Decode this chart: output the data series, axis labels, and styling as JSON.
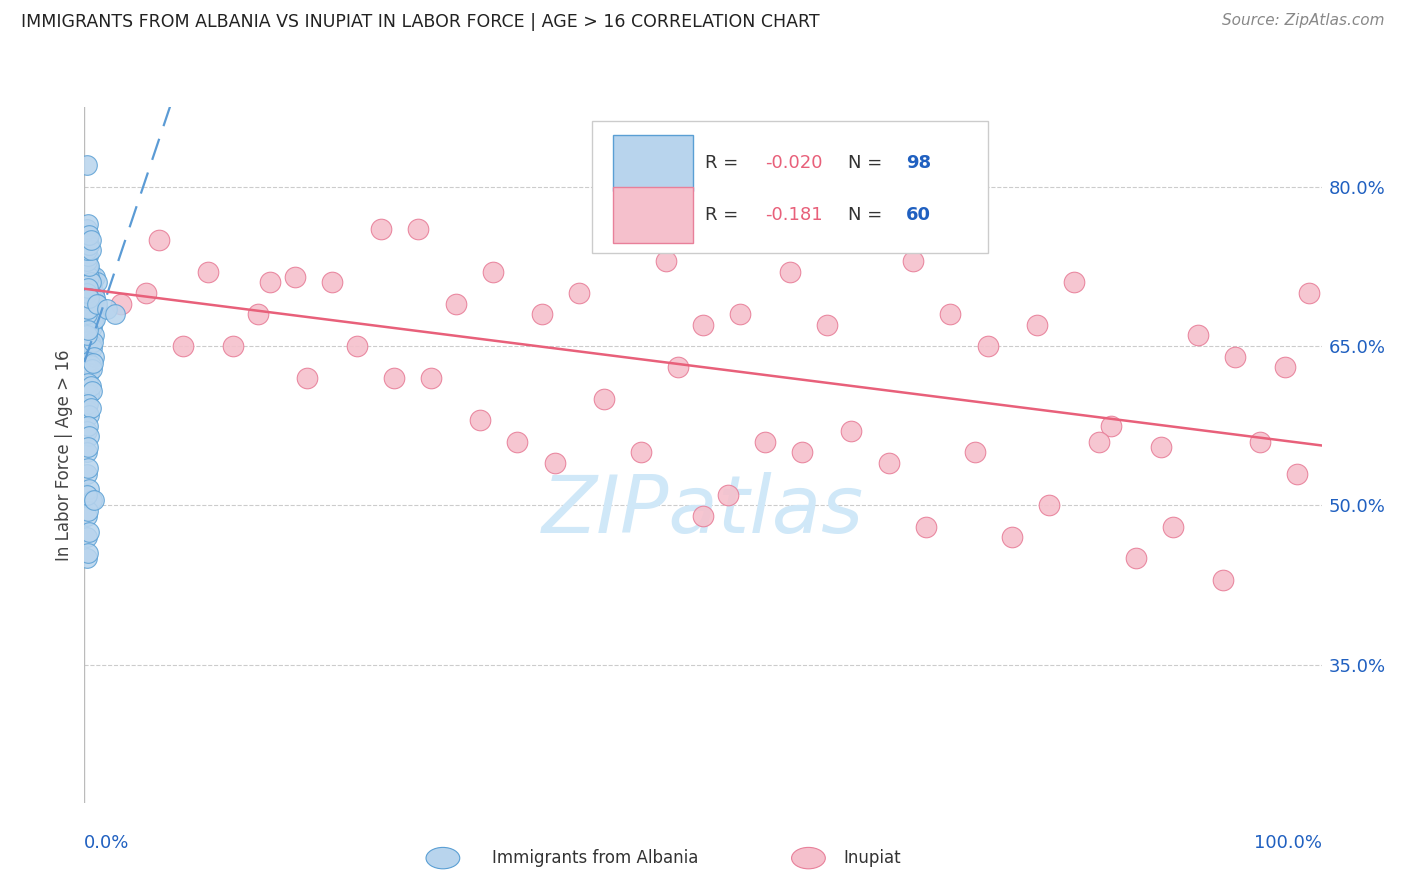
{
  "title": "IMMIGRANTS FROM ALBANIA VS INUPIAT IN LABOR FORCE | AGE > 16 CORRELATION CHART",
  "source": "Source: ZipAtlas.com",
  "ylabel": "In Labor Force | Age > 16",
  "y_ticks": [
    0.35,
    0.5,
    0.65,
    0.8
  ],
  "y_tick_labels": [
    "35.0%",
    "50.0%",
    "65.0%",
    "80.0%"
  ],
  "x_range": [
    0.0,
    1.0
  ],
  "y_range": [
    0.22,
    0.875
  ],
  "albania_R": -0.02,
  "albania_N": 98,
  "inupiat_R": -0.181,
  "inupiat_N": 60,
  "albania_color": "#b8d4ed",
  "albania_edge_color": "#5a9fd4",
  "inupiat_color": "#f5c0cc",
  "inupiat_edge_color": "#e8809a",
  "albania_trend_color": "#5b9bd5",
  "inupiat_trend_color": "#e8607a",
  "watermark_color": "#d0e8f8",
  "title_color": "#222222",
  "axis_label_color": "#2060c0",
  "background_color": "#ffffff",
  "grid_color": "#cccccc",
  "albania_x": [
    0.002,
    0.003,
    0.004,
    0.005,
    0.006,
    0.007,
    0.008,
    0.009,
    0.01,
    0.002,
    0.003,
    0.004,
    0.005,
    0.006,
    0.007,
    0.008,
    0.009,
    0.01,
    0.002,
    0.003,
    0.004,
    0.005,
    0.006,
    0.007,
    0.008,
    0.009,
    0.002,
    0.003,
    0.004,
    0.005,
    0.006,
    0.007,
    0.008,
    0.002,
    0.003,
    0.004,
    0.005,
    0.006,
    0.007,
    0.002,
    0.003,
    0.004,
    0.005,
    0.006,
    0.002,
    0.003,
    0.004,
    0.005,
    0.002,
    0.003,
    0.004,
    0.002,
    0.003,
    0.002,
    0.003,
    0.002,
    0.004,
    0.006,
    0.002,
    0.003,
    0.002,
    0.004,
    0.002,
    0.003,
    0.002,
    0.003,
    0.002,
    0.003,
    0.002,
    0.003,
    0.004,
    0.005,
    0.002,
    0.003,
    0.004,
    0.002,
    0.003,
    0.004,
    0.002,
    0.004,
    0.002,
    0.003,
    0.004,
    0.005,
    0.002,
    0.003,
    0.004,
    0.005,
    0.002,
    0.01,
    0.018,
    0.025,
    0.002,
    0.008
  ],
  "albania_y": [
    0.71,
    0.715,
    0.705,
    0.718,
    0.708,
    0.712,
    0.7,
    0.715,
    0.71,
    0.69,
    0.695,
    0.685,
    0.692,
    0.688,
    0.694,
    0.68,
    0.695,
    0.69,
    0.67,
    0.675,
    0.665,
    0.672,
    0.668,
    0.674,
    0.66,
    0.675,
    0.65,
    0.655,
    0.645,
    0.652,
    0.648,
    0.654,
    0.64,
    0.63,
    0.635,
    0.625,
    0.632,
    0.628,
    0.634,
    0.61,
    0.615,
    0.605,
    0.612,
    0.608,
    0.59,
    0.595,
    0.585,
    0.592,
    0.57,
    0.575,
    0.565,
    0.55,
    0.555,
    0.53,
    0.535,
    0.51,
    0.515,
    0.505,
    0.49,
    0.495,
    0.47,
    0.475,
    0.45,
    0.455,
    0.68,
    0.685,
    0.66,
    0.665,
    0.72,
    0.725,
    0.715,
    0.71,
    0.7,
    0.705,
    0.695,
    0.73,
    0.735,
    0.725,
    0.74,
    0.745,
    0.75,
    0.755,
    0.745,
    0.74,
    0.76,
    0.765,
    0.755,
    0.75,
    0.82,
    0.69,
    0.685,
    0.68,
    0.51,
    0.505
  ],
  "inupiat_x": [
    0.03,
    0.06,
    0.1,
    0.14,
    0.17,
    0.2,
    0.24,
    0.27,
    0.3,
    0.33,
    0.37,
    0.4,
    0.43,
    0.47,
    0.5,
    0.53,
    0.57,
    0.6,
    0.63,
    0.67,
    0.7,
    0.73,
    0.77,
    0.8,
    0.83,
    0.87,
    0.9,
    0.93,
    0.97,
    0.99,
    0.05,
    0.08,
    0.12,
    0.15,
    0.18,
    0.22,
    0.25,
    0.28,
    0.32,
    0.35,
    0.38,
    0.42,
    0.45,
    0.48,
    0.52,
    0.55,
    0.58,
    0.62,
    0.65,
    0.68,
    0.72,
    0.75,
    0.78,
    0.82,
    0.85,
    0.88,
    0.92,
    0.95,
    0.98,
    0.5
  ],
  "inupiat_y": [
    0.69,
    0.75,
    0.72,
    0.68,
    0.715,
    0.71,
    0.76,
    0.76,
    0.69,
    0.72,
    0.68,
    0.7,
    0.76,
    0.73,
    0.67,
    0.68,
    0.72,
    0.67,
    0.75,
    0.73,
    0.68,
    0.65,
    0.67,
    0.71,
    0.575,
    0.555,
    0.66,
    0.64,
    0.63,
    0.7,
    0.7,
    0.65,
    0.65,
    0.71,
    0.62,
    0.65,
    0.62,
    0.62,
    0.58,
    0.56,
    0.54,
    0.6,
    0.55,
    0.63,
    0.51,
    0.56,
    0.55,
    0.57,
    0.54,
    0.48,
    0.55,
    0.47,
    0.5,
    0.56,
    0.45,
    0.48,
    0.43,
    0.56,
    0.53,
    0.49
  ]
}
